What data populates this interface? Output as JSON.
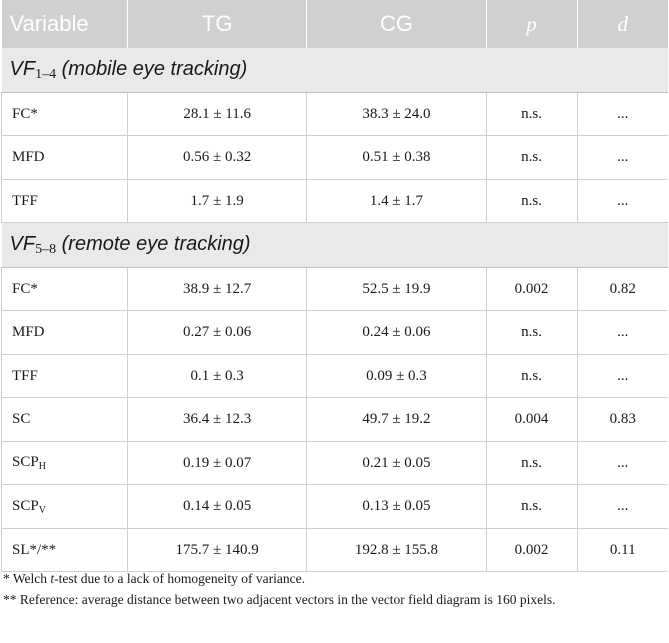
{
  "header": {
    "variable": "Variable",
    "tg": "TG",
    "cg": "CG",
    "p": "p",
    "d": "d"
  },
  "sections": [
    {
      "label_main": "VF",
      "label_sub": "1–4",
      "label_rest": " (mobile eye tracking)",
      "rows": [
        {
          "var_main": "FC*",
          "var_sub": "",
          "tg": "28.1 ± 11.6",
          "cg": "38.3 ± 24.0",
          "p": "n.s.",
          "d": "..."
        },
        {
          "var_main": "MFD",
          "var_sub": "",
          "tg": "0.56 ± 0.32",
          "cg": "0.51 ± 0.38",
          "p": "n.s.",
          "d": "..."
        },
        {
          "var_main": "TFF",
          "var_sub": "",
          "tg": "1.7 ± 1.9",
          "cg": "1.4 ± 1.7",
          "p": "n.s.",
          "d": "..."
        }
      ]
    },
    {
      "label_main": "VF",
      "label_sub": "5–8",
      "label_rest": " (remote eye tracking)",
      "rows": [
        {
          "var_main": "FC*",
          "var_sub": "",
          "tg": "38.9 ± 12.7",
          "cg": "52.5 ± 19.9",
          "p": "0.002",
          "d": "0.82"
        },
        {
          "var_main": "MFD",
          "var_sub": "",
          "tg": "0.27 ± 0.06",
          "cg": "0.24 ± 0.06",
          "p": "n.s.",
          "d": "..."
        },
        {
          "var_main": "TFF",
          "var_sub": "",
          "tg": "0.1 ± 0.3",
          "cg": "0.09 ± 0.3",
          "p": "n.s.",
          "d": "..."
        },
        {
          "var_main": "SC",
          "var_sub": "",
          "tg": "36.4 ± 12.3",
          "cg": "49.7 ± 19.2",
          "p": "0.004",
          "d": "0.83"
        },
        {
          "var_main": "SCP",
          "var_sub": "H",
          "tg": "0.19 ± 0.07",
          "cg": "0.21 ± 0.05",
          "p": "n.s.",
          "d": "..."
        },
        {
          "var_main": "SCP",
          "var_sub": "V",
          "tg": "0.14 ± 0.05",
          "cg": "0.13 ± 0.05",
          "p": "n.s.",
          "d": "..."
        },
        {
          "var_main": "SL*/**",
          "var_sub": "",
          "tg": "175.7 ± 140.9",
          "cg": "192.8 ± 155.8",
          "p": "0.002",
          "d": "0.11"
        }
      ]
    }
  ],
  "notes": {
    "n1_a": "* Welch ",
    "n1_t": "t",
    "n1_b": "-test due to a lack of homogeneity of variance.",
    "n2": "** Reference: average distance between two adjacent vectors in the vector field diagram is 160 pixels."
  }
}
